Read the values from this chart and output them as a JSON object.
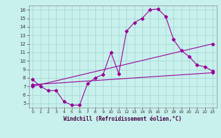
{
  "title": "",
  "xlabel": "Windchill (Refroidissement éolien,°C)",
  "ylabel": "",
  "background_color": "#c8f0ec",
  "grid_color": "#a8d8d4",
  "line_color": "#990099",
  "xlim": [
    -0.5,
    23.5
  ],
  "ylim": [
    4.5,
    16.5
  ],
  "xticks": [
    0,
    1,
    2,
    3,
    4,
    5,
    6,
    7,
    8,
    9,
    10,
    11,
    12,
    13,
    14,
    15,
    16,
    17,
    18,
    19,
    20,
    21,
    22,
    23
  ],
  "yticks": [
    5,
    6,
    7,
    8,
    9,
    10,
    11,
    12,
    13,
    14,
    15,
    16
  ],
  "line1_x": [
    0,
    1,
    2,
    3,
    4,
    5,
    6,
    7,
    8,
    9,
    10,
    11,
    12,
    13,
    14,
    15,
    16,
    17,
    18,
    19,
    20,
    21,
    22,
    23
  ],
  "line1_y": [
    7.8,
    7.0,
    6.5,
    6.5,
    5.2,
    4.8,
    4.8,
    7.3,
    8.0,
    8.4,
    11.0,
    8.5,
    13.5,
    14.5,
    15.0,
    16.0,
    16.1,
    15.2,
    12.5,
    11.2,
    10.5,
    9.5,
    9.3,
    8.8
  ],
  "line2_x": [
    0,
    23
  ],
  "line2_y": [
    7.2,
    8.6
  ],
  "line3_x": [
    0,
    23
  ],
  "line3_y": [
    7.0,
    12.0
  ]
}
